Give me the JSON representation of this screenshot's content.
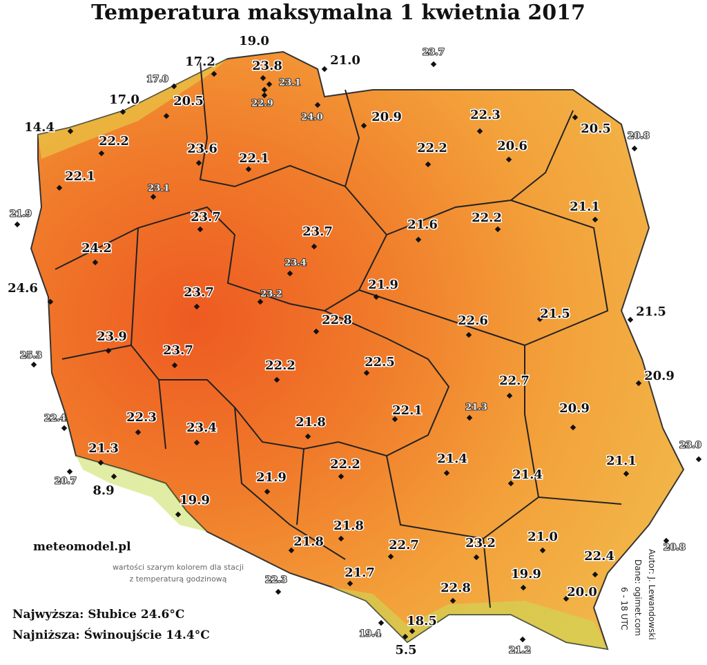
{
  "title": "Temperatura maksymalna 1 kwietnia 2017",
  "site": "meteomodel.pl",
  "note": [
    "wartości szarym kolorem dla stacji",
    "z temperaturą godzinową"
  ],
  "extremes": [
    "Najwyższa: Słubice 24.6°C",
    "Najniższa: Świnoujście 14.4°C"
  ],
  "credits": [
    "Autor: J. Lewandowski",
    "Dane: ogimet.com",
    "6 - 18 UTC"
  ],
  "stations": [
    {
      "label": "19.0"
    },
    {
      "label": "17.2"
    },
    {
      "label": "17.0",
      "hourly": true
    },
    {
      "label": "23.8"
    },
    {
      "label": "23.1",
      "hourly": true
    },
    {
      "label": "22.9",
      "hourly": true
    },
    {
      "label": "21.0"
    },
    {
      "label": "23.7",
      "hourly": true
    },
    {
      "label": "17.0"
    },
    {
      "label": "20.5"
    },
    {
      "label": "24.0",
      "hourly": true
    },
    {
      "label": "14.4"
    },
    {
      "label": "20.9"
    },
    {
      "label": "22.3"
    },
    {
      "label": "20.5"
    },
    {
      "label": "20.8",
      "hourly": true
    },
    {
      "label": "22.2"
    },
    {
      "label": "23.6"
    },
    {
      "label": "22.1"
    },
    {
      "label": "22.2"
    },
    {
      "label": "20.6"
    },
    {
      "label": "22.1"
    },
    {
      "label": "23.1",
      "hourly": true
    },
    {
      "label": "21.9",
      "hourly": true
    },
    {
      "label": "23.7"
    },
    {
      "label": "21.1"
    },
    {
      "label": "21.6"
    },
    {
      "label": "22.2"
    },
    {
      "label": "23.7"
    },
    {
      "label": "24.2"
    },
    {
      "label": "23.4",
      "hourly": true
    },
    {
      "label": "24.6"
    },
    {
      "label": "23.7"
    },
    {
      "label": "23.2",
      "hourly": true
    },
    {
      "label": "21.9"
    },
    {
      "label": "22.8"
    },
    {
      "label": "22.6"
    },
    {
      "label": "21.5"
    },
    {
      "label": "21.5"
    },
    {
      "label": "25.3",
      "hourly": true
    },
    {
      "label": "23.9"
    },
    {
      "label": "23.7"
    },
    {
      "label": "22.5"
    },
    {
      "label": "22.2"
    },
    {
      "label": "22.7"
    },
    {
      "label": "20.9"
    },
    {
      "label": "21.3",
      "hourly": true
    },
    {
      "label": "22.1"
    },
    {
      "label": "20.9"
    },
    {
      "label": "22.4",
      "hourly": true
    },
    {
      "label": "22.3"
    },
    {
      "label": "21.8"
    },
    {
      "label": "23.4"
    },
    {
      "label": "23.0",
      "hourly": true
    },
    {
      "label": "21.3"
    },
    {
      "label": "22.2"
    },
    {
      "label": "21.4"
    },
    {
      "label": "21.1"
    },
    {
      "label": "20.7",
      "hourly": true
    },
    {
      "label": "8.9"
    },
    {
      "label": "21.9"
    },
    {
      "label": "21.4"
    },
    {
      "label": "19.9"
    },
    {
      "label": "21.8"
    },
    {
      "label": "21.8"
    },
    {
      "label": "22.7"
    },
    {
      "label": "23.2"
    },
    {
      "label": "21.0"
    },
    {
      "label": "20.8",
      "hourly": true
    },
    {
      "label": "22.4"
    },
    {
      "label": "22.3",
      "hourly": true
    },
    {
      "label": "21.7"
    },
    {
      "label": "19.9"
    },
    {
      "label": "22.8"
    },
    {
      "label": "20.0"
    },
    {
      "label": "18.5"
    },
    {
      "label": "19.4",
      "hourly": true
    },
    {
      "label": "5.5"
    },
    {
      "label": "21.2",
      "hourly": true
    }
  ]
}
